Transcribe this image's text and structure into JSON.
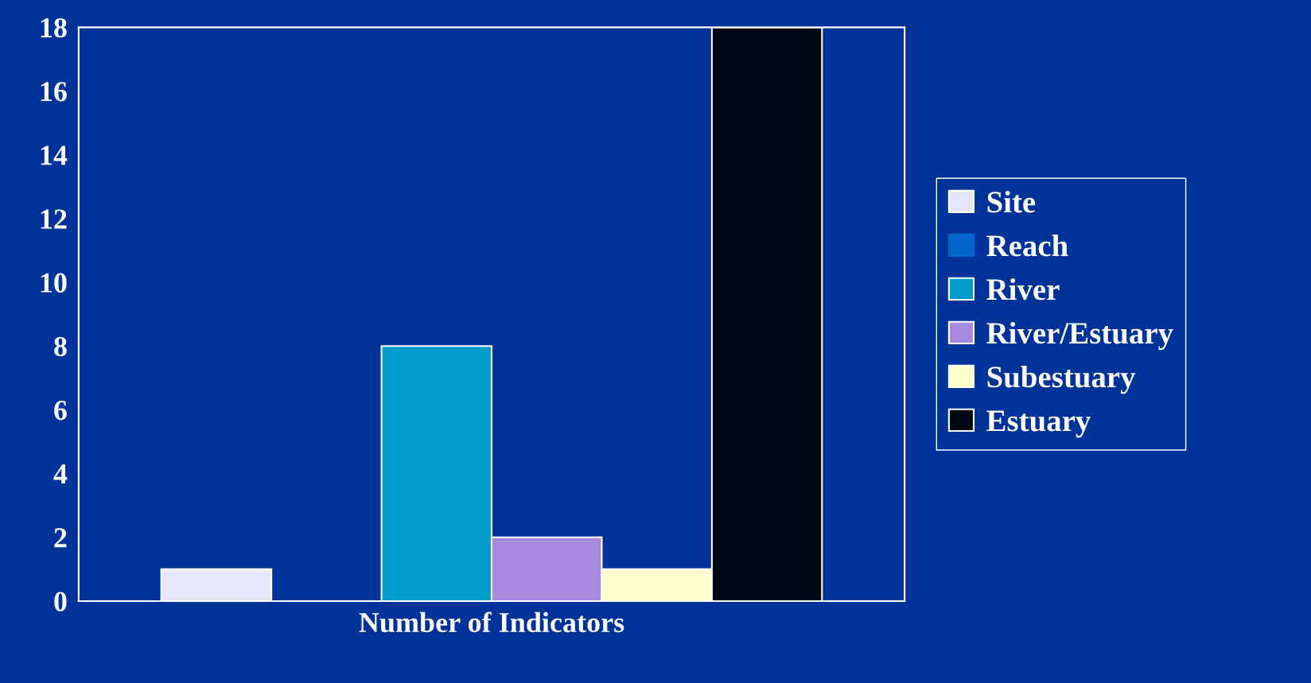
{
  "chart_data": {
    "type": "bar",
    "categories": [
      "Number of Indicators"
    ],
    "series": [
      {
        "name": "Site",
        "color": "#e6e6fa",
        "values": [
          1
        ]
      },
      {
        "name": "Reach",
        "color": "#0066cc",
        "values": [
          0
        ]
      },
      {
        "name": "River",
        "color": "#009ccc",
        "values": [
          8
        ]
      },
      {
        "name": "River/Estuary",
        "color": "#a78ae0",
        "values": [
          2
        ]
      },
      {
        "name": "Subestuary",
        "color": "#ffffcc",
        "values": [
          1
        ]
      },
      {
        "name": "Estuary",
        "color": "#000814",
        "values": [
          18
        ]
      }
    ],
    "ylim": [
      0,
      18
    ],
    "yticks": [
      0,
      2,
      4,
      6,
      8,
      10,
      12,
      14,
      16,
      18
    ],
    "grid": false,
    "legend": "right"
  }
}
